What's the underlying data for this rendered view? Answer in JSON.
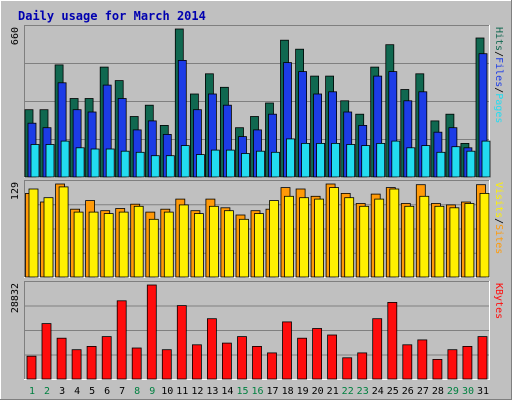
{
  "chart_data": {
    "type": "bar",
    "title": "Daily usage for March 2014",
    "x": [
      "1",
      "2",
      "3",
      "4",
      "5",
      "6",
      "7",
      "8",
      "9",
      "10",
      "11",
      "12",
      "13",
      "14",
      "15",
      "16",
      "17",
      "18",
      "19",
      "20",
      "21",
      "22",
      "23",
      "24",
      "25",
      "26",
      "27",
      "28",
      "29",
      "30",
      "31"
    ],
    "weekend_days": [
      "1",
      "2",
      "8",
      "9",
      "15",
      "16",
      "22",
      "23",
      "29",
      "30"
    ],
    "panels": [
      {
        "id": "top",
        "ymax": 660,
        "ymax_label": "660",
        "axis_label_parts": [
          "Pages",
          "/",
          "Files",
          "/",
          "Hits"
        ],
        "series": [
          {
            "name": "Hits",
            "color": "#106850",
            "values": [
              300,
              300,
              500,
              350,
              350,
              490,
              430,
              270,
              320,
              230,
              660,
              370,
              460,
              400,
              220,
              270,
              330,
              610,
              570,
              450,
              450,
              340,
              280,
              490,
              590,
              390,
              460,
              250,
              280,
              150,
              620
            ]
          },
          {
            "name": "Files",
            "color": "#1c3ce6",
            "values": [
              240,
              220,
              420,
              300,
              290,
              410,
              350,
              210,
              250,
              190,
              520,
              300,
              370,
              320,
              180,
              210,
              280,
              510,
              470,
              370,
              380,
              290,
              230,
              450,
              470,
              340,
              380,
              200,
              220,
              130,
              550
            ]
          },
          {
            "name": "Pages",
            "color": "#22dcf0",
            "values": [
              145,
              145,
              160,
              130,
              125,
              125,
              115,
              110,
              95,
              95,
              140,
              100,
              120,
              120,
              105,
              115,
              110,
              170,
              150,
              150,
              150,
              145,
              140,
              150,
              160,
              130,
              140,
              110,
              135,
              115,
              160
            ]
          }
        ]
      },
      {
        "id": "middle",
        "ymax": 129,
        "ymax_label": "129",
        "axis_label_parts": [
          "Sites",
          "/",
          "Visits"
        ],
        "series": [
          {
            "name": "Visits",
            "color": "#ff9a08",
            "values": [
              116,
              104,
              129,
              94,
              106,
              92,
              95,
              101,
              90,
              94,
              108,
              92,
              108,
              96,
              86,
              92,
              94,
              124,
              122,
              112,
              129,
              116,
              102,
              115,
              124,
              102,
              128,
              102,
              100,
              104,
              128
            ]
          },
          {
            "name": "Sites",
            "color": "#fff000",
            "values": [
              122,
              110,
              125,
              90,
              90,
              88,
              90,
              98,
              80,
              90,
              100,
              88,
              98,
              92,
              80,
              88,
              106,
              112,
              110,
              108,
              124,
              110,
              98,
              108,
              122,
              98,
              112,
              98,
              96,
              102,
              116
            ]
          }
        ]
      },
      {
        "id": "bottom",
        "ymax": 28832,
        "ymax_label": "28832",
        "axis_label_parts": [
          "KBytes"
        ],
        "series": [
          {
            "name": "KBytes",
            "color": "#ff0c0c",
            "values": [
              7000,
              17000,
              12500,
              9000,
              10000,
              13000,
              24000,
              9500,
              28832,
              9000,
              22500,
              10500,
              18500,
              11000,
              13000,
              10000,
              8000,
              17500,
              12500,
              15500,
              13500,
              6500,
              8000,
              18500,
              23500,
              10500,
              12000,
              6000,
              9000,
              10000,
              13000
            ]
          }
        ]
      }
    ]
  }
}
